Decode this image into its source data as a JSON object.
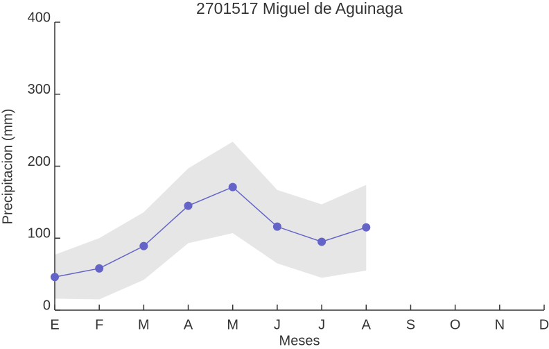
{
  "chart_data": {
    "type": "line",
    "title": "2701517 Miguel de Aguinaga",
    "xlabel": "Meses",
    "ylabel": "Precipitacion (mm)",
    "categories": [
      "E",
      "F",
      "M",
      "A",
      "M",
      "J",
      "J",
      "A",
      "S",
      "O",
      "N",
      "D"
    ],
    "series": [
      {
        "name": "Precipitacion",
        "color": "#6464c8",
        "values": [
          46,
          58,
          89,
          145,
          171,
          116,
          95,
          115,
          null,
          null,
          null,
          null
        ]
      }
    ],
    "band": {
      "color": "#e6e6e6",
      "upper": [
        77,
        100,
        136,
        197,
        234,
        167,
        147,
        174,
        null,
        null,
        null,
        null
      ],
      "lower": [
        16,
        15,
        42,
        93,
        107,
        65,
        45,
        55,
        null,
        null,
        null,
        null
      ]
    },
    "ylim": [
      0,
      400
    ],
    "yticks": [
      0,
      100,
      200,
      300,
      400
    ]
  }
}
